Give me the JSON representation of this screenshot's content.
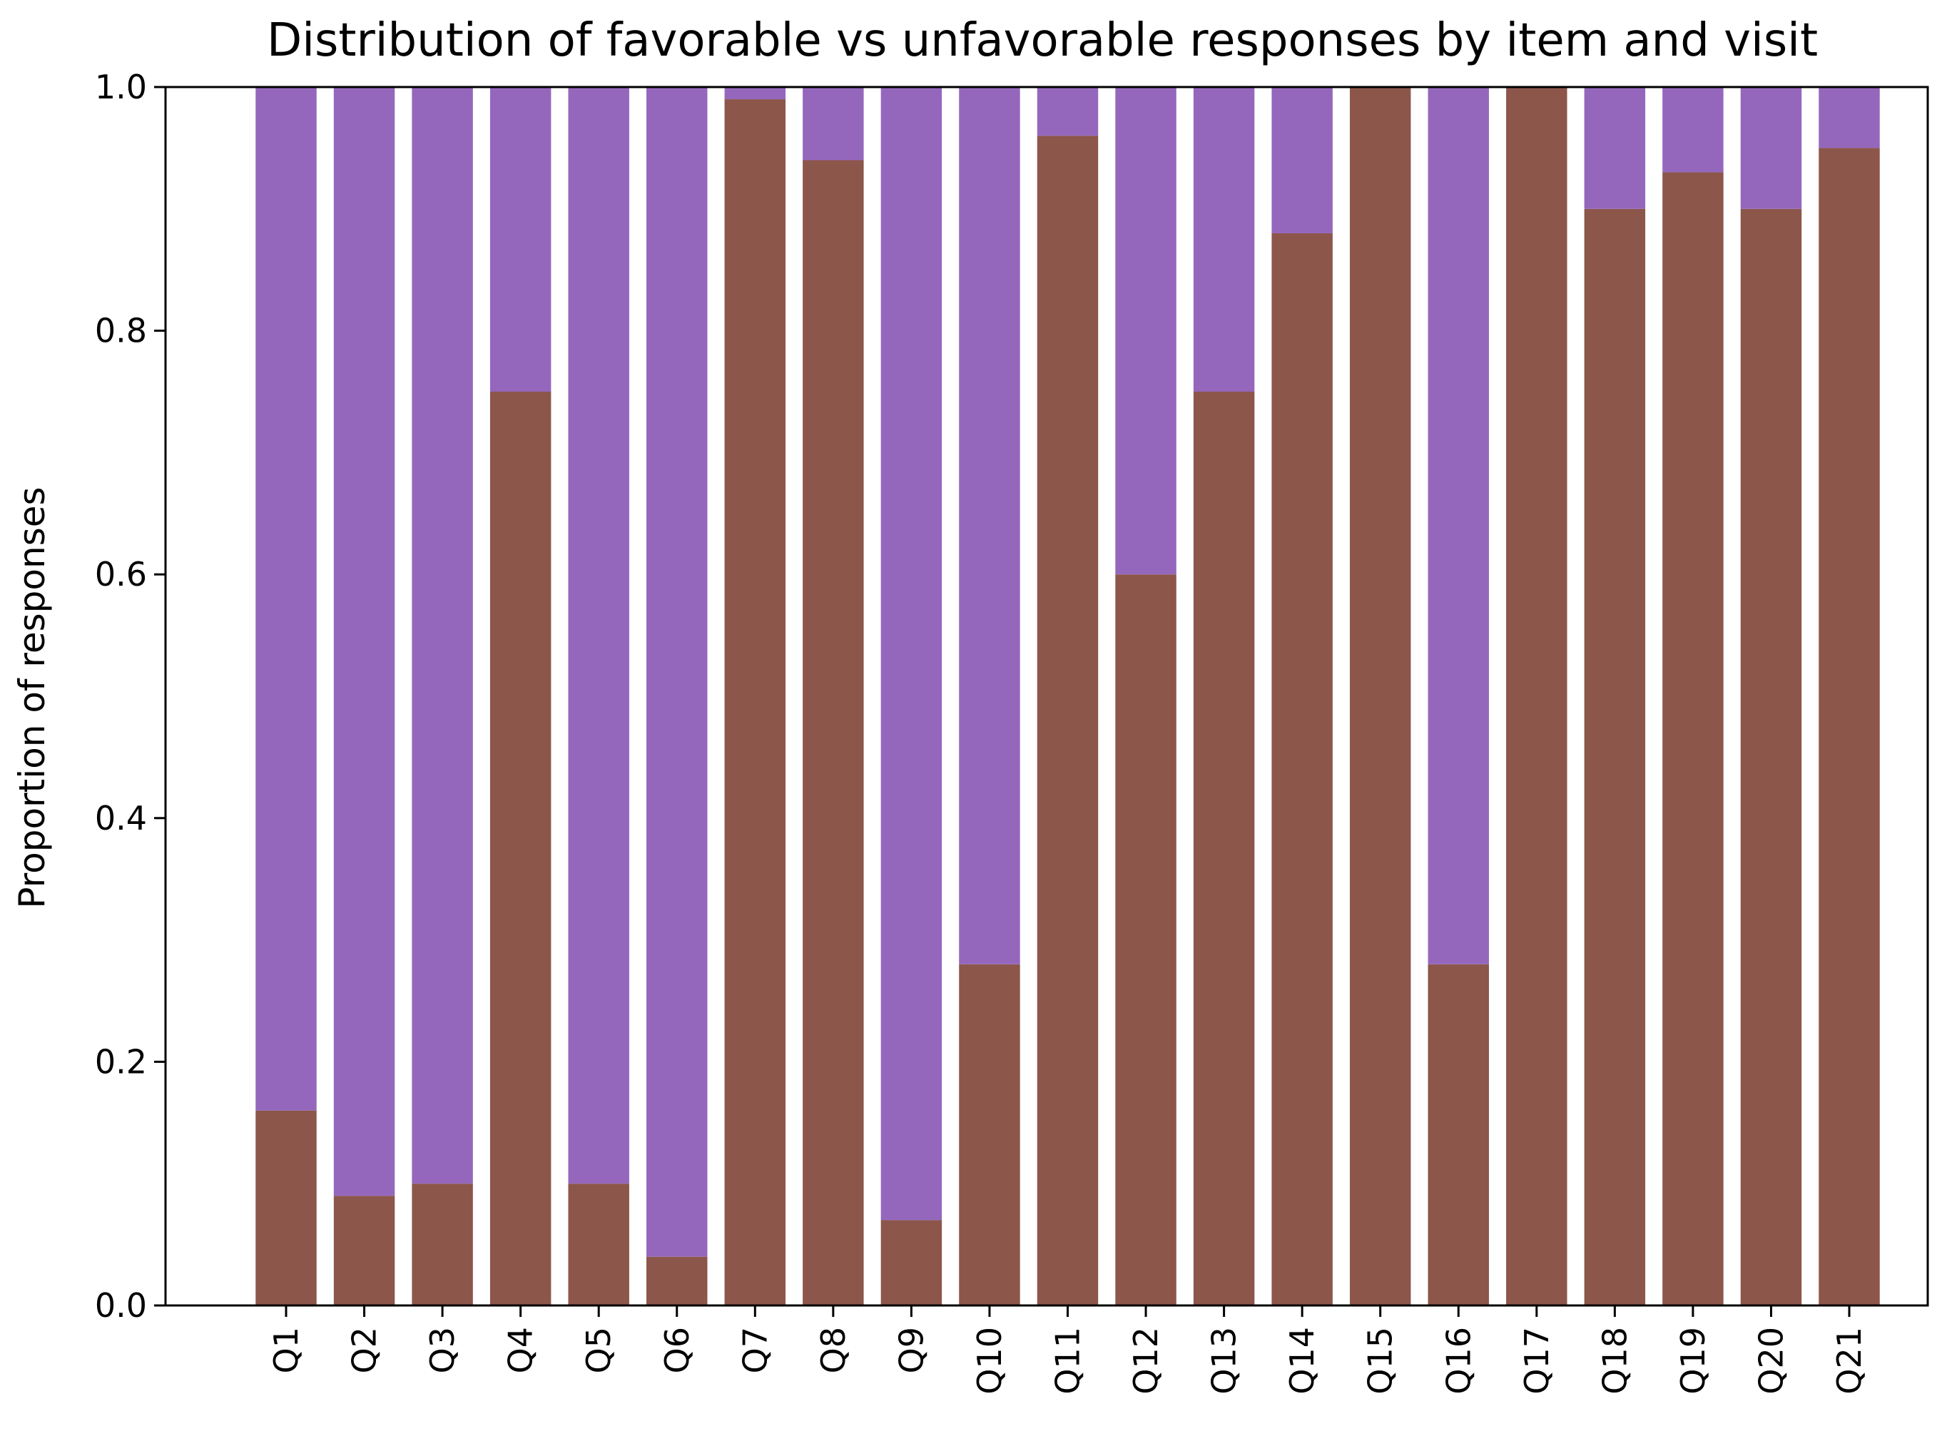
{
  "chart_data": {
    "type": "bar",
    "stacked": true,
    "title": "Distribution of favorable vs unfavorable responses by item and visit",
    "xlabel": "",
    "ylabel": "Proportion of responses",
    "ylim": [
      0,
      1.0
    ],
    "yticks": [
      "0.0",
      "0.2",
      "0.4",
      "0.6",
      "0.8",
      "1.0"
    ],
    "grid": false,
    "legend": "none",
    "categories": [
      "Q1",
      "Q2",
      "Q3",
      "Q4",
      "Q5",
      "Q6",
      "Q7",
      "Q8",
      "Q9",
      "Q10",
      "Q11",
      "Q12",
      "Q13",
      "Q14",
      "Q15",
      "Q16",
      "Q17",
      "Q18",
      "Q19",
      "Q20",
      "Q21"
    ],
    "series": [
      {
        "color": "#8c564b",
        "values": [
          0.16,
          0.09,
          0.1,
          0.75,
          0.1,
          0.04,
          0.99,
          0.94,
          0.07,
          0.28,
          0.96,
          0.6,
          0.75,
          0.88,
          1.0,
          0.28,
          1.0,
          0.9,
          0.93,
          0.9,
          0.95
        ]
      },
      {
        "color": "#9467bd",
        "values": [
          0.84,
          0.91,
          0.9,
          0.25,
          0.9,
          0.96,
          0.01,
          0.06,
          0.93,
          0.72,
          0.04,
          0.4,
          0.25,
          0.12,
          0.0,
          0.72,
          0.0,
          0.1,
          0.07,
          0.1,
          0.05
        ]
      }
    ]
  }
}
